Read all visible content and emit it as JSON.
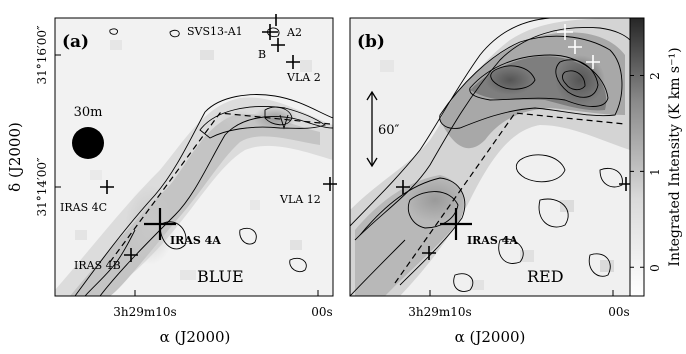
{
  "axes": {
    "ylabel": "δ (J2000)",
    "xlabel": "α (J2000)",
    "y_ticks": [
      "31°16′00″",
      "31°14′00″"
    ],
    "x_ticks": [
      "3h29m10s",
      "00s"
    ]
  },
  "panels": [
    {
      "label": "(a)",
      "name": "BLUE",
      "beam_label": "30m",
      "sources": [
        "SVS13-A1",
        "A2",
        "B",
        "VLA 2",
        "IRAS 4C",
        "VLA 12",
        "IRAS 4A",
        "IRAS 4B"
      ]
    },
    {
      "label": "(b)",
      "name": "RED",
      "scale_label": "60″",
      "sources": [
        "IRAS 4A"
      ]
    }
  ],
  "colorbar": {
    "label": "Integrated Intensity (K km s⁻¹)",
    "ticks": [
      "0",
      "1",
      "2"
    ],
    "range": [
      -0.3,
      2.6
    ],
    "colormap": "grayscale"
  }
}
